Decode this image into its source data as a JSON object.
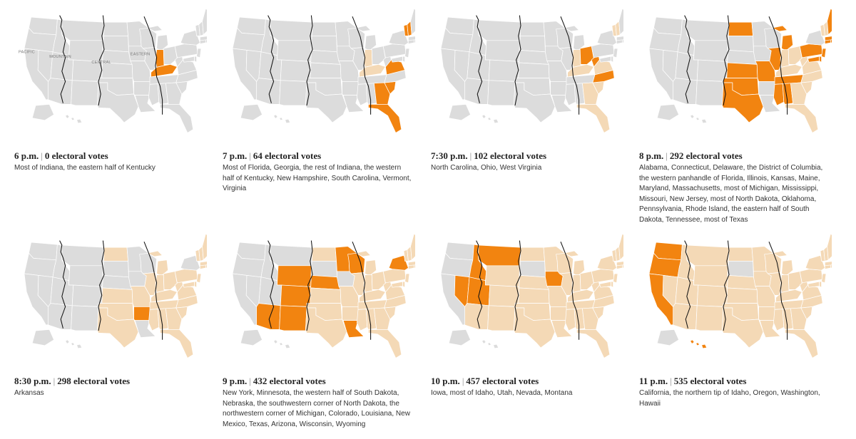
{
  "colors": {
    "no_poll": "#dcdcdc",
    "closed_earlier": "#f4d9b6",
    "closing_now": "#f28410",
    "state_border": "#ffffff",
    "zone_line": "#111111",
    "zone_label": "#777777"
  },
  "zone_labels": [
    "PACIFIC",
    "MOUNTAIN",
    "CENTRAL",
    "EASTERN"
  ],
  "separator": "|",
  "panels": [
    {
      "time": "6 p.m.",
      "votes": "0",
      "unit": "electoral votes",
      "description": "Most of Indiana, the eastern half of Kentucky",
      "closing_now": [
        "IN",
        "KY"
      ],
      "show_zone_labels": true
    },
    {
      "time": "7 p.m.",
      "votes": "64",
      "unit": "electoral votes",
      "description": "Most of Florida, Georgia, the rest of Indiana, the western half of Kentucky, New Hampshire, South Carolina, Vermont, Virginia",
      "closing_now": [
        "FL",
        "GA",
        "SC",
        "VA",
        "VT",
        "NH"
      ],
      "show_zone_labels": false
    },
    {
      "time": "7:30 p.m.",
      "votes": "102",
      "unit": "electoral votes",
      "description": "North Carolina, Ohio, West Virginia",
      "closing_now": [
        "NC",
        "OH",
        "WV"
      ],
      "show_zone_labels": false
    },
    {
      "time": "8 p.m.",
      "votes": "292",
      "unit": "electoral votes",
      "description": "Alabama, Connecticut, Delaware, the District of Columbia, the western panhandle of Florida, Illinois, Kansas, Maine, Maryland, Massachusetts, most of Michigan, Mississippi, Missouri, New Jersey, most of North Dakota, Oklahoma, Pennsylvania, Rhode Island, the eastern half of South Dakota, Tennessee, most of Texas",
      "closing_now": [
        "AL",
        "CT",
        "DE",
        "IL",
        "KS",
        "ME",
        "MD",
        "MA",
        "MI",
        "MS",
        "MO",
        "NJ",
        "ND",
        "OK",
        "PA",
        "RI",
        "TN",
        "TX"
      ],
      "show_zone_labels": false
    },
    {
      "time": "8:30 p.m.",
      "votes": "298",
      "unit": "electoral votes",
      "description": "Arkansas",
      "closing_now": [
        "AR"
      ],
      "show_zone_labels": false
    },
    {
      "time": "9 p.m.",
      "votes": "432",
      "unit": "electoral votes",
      "description": "New York, Minnesota, the western half of South Dakota, Nebraska, the southwestern corner of North Dakota, the northwestern corner of Michigan, Colorado, Louisiana, New Mexico, Texas, Arizona, Wisconsin, Wyoming",
      "closing_now": [
        "NY",
        "MN",
        "NE",
        "CO",
        "LA",
        "NM",
        "AZ",
        "WI",
        "WY"
      ],
      "show_zone_labels": false
    },
    {
      "time": "10 p.m.",
      "votes": "457",
      "unit": "electoral votes",
      "description": "Iowa, most of Idaho, Utah, Nevada, Montana",
      "closing_now": [
        "IA",
        "ID",
        "UT",
        "NV",
        "MT"
      ],
      "show_zone_labels": false
    },
    {
      "time": "11 p.m.",
      "votes": "535",
      "unit": "electoral votes",
      "description": "California, the northern tip of Idaho, Oregon, Washington, Hawaii",
      "closing_now": [
        "CA",
        "OR",
        "WA",
        "HI"
      ],
      "show_zone_labels": false
    }
  ]
}
